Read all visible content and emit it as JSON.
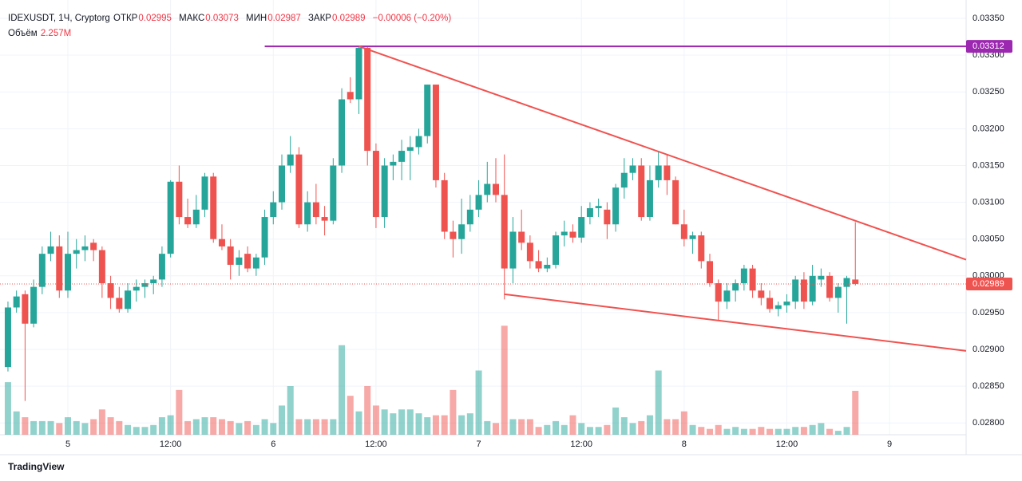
{
  "chart_data": {
    "type": "candlestick",
    "brand": "TradingView",
    "legend": {
      "symbol": "IDEXUSDT, 1Ч, Cryptorg",
      "open_label": "ОТКР",
      "high_label": "МАКС",
      "low_label": "МИН",
      "close_label": "ЗАКР",
      "change": "−0.00006 (−0.20%)",
      "volume_label": "Объём"
    },
    "up_color": "#26a69a",
    "down_color": "#ef5350",
    "ylim": [
      0.02784,
      0.03375
    ],
    "yticks": [
      {
        "value": 0.028,
        "label": "0.02800"
      },
      {
        "value": 0.0285,
        "label": "0.02850"
      },
      {
        "value": 0.029,
        "label": "0.02900"
      },
      {
        "value": 0.0295,
        "label": "0.02950"
      },
      {
        "value": 0.03,
        "label": "0.03000"
      },
      {
        "value": 0.0305,
        "label": "0.03050"
      },
      {
        "value": 0.031,
        "label": "0.03100"
      },
      {
        "value": 0.0315,
        "label": "0.03150"
      },
      {
        "value": 0.032,
        "label": "0.03200"
      },
      {
        "value": 0.0325,
        "label": "0.03250"
      },
      {
        "value": 0.033,
        "label": "0.03300"
      },
      {
        "value": 0.0335,
        "label": "0.03350"
      }
    ],
    "xticks": [
      {
        "value": 7,
        "label": "5"
      },
      {
        "value": 19,
        "label": "12:00"
      },
      {
        "value": 31,
        "label": "6"
      },
      {
        "value": 43,
        "label": "12:00"
      },
      {
        "value": 55,
        "label": "7"
      },
      {
        "value": 67,
        "label": "12:00"
      },
      {
        "value": 79,
        "label": "8"
      },
      {
        "value": 91,
        "label": "12:00"
      },
      {
        "value": 103,
        "label": "9"
      }
    ],
    "grid": true,
    "ohlc": [
      [
        0.02876,
        0.02965,
        0.0287,
        0.02957
      ],
      [
        0.02957,
        0.0298,
        0.0295,
        0.02972
      ],
      [
        0.02975,
        0.0298,
        0.0283,
        0.02935
      ],
      [
        0.02935,
        0.02995,
        0.0293,
        0.02985
      ],
      [
        0.02985,
        0.0304,
        0.02975,
        0.0303
      ],
      [
        0.0303,
        0.0306,
        0.0302,
        0.0304
      ],
      [
        0.0304,
        0.03055,
        0.0297,
        0.0298
      ],
      [
        0.0298,
        0.0306,
        0.0297,
        0.0303
      ],
      [
        0.0303,
        0.0305,
        0.0301,
        0.03035
      ],
      [
        0.03035,
        0.03055,
        0.0302,
        0.0304
      ],
      [
        0.03045,
        0.0305,
        0.0302,
        0.03035
      ],
      [
        0.03035,
        0.0304,
        0.0297,
        0.0299
      ],
      [
        0.0299,
        0.03,
        0.02955,
        0.0297
      ],
      [
        0.0297,
        0.02985,
        0.0295,
        0.02955
      ],
      [
        0.02955,
        0.0299,
        0.0295,
        0.0298
      ],
      [
        0.0298,
        0.02995,
        0.02965,
        0.02985
      ],
      [
        0.02985,
        0.02995,
        0.0297,
        0.0299
      ],
      [
        0.0299,
        0.03,
        0.02975,
        0.02995
      ],
      [
        0.02995,
        0.0304,
        0.02985,
        0.0303
      ],
      [
        0.0303,
        0.0313,
        0.03025,
        0.03128
      ],
      [
        0.03128,
        0.0315,
        0.0307,
        0.0308
      ],
      [
        0.0308,
        0.03105,
        0.03065,
        0.0307
      ],
      [
        0.0307,
        0.0311,
        0.03065,
        0.0309
      ],
      [
        0.0309,
        0.0314,
        0.0308,
        0.03135
      ],
      [
        0.03135,
        0.0314,
        0.03045,
        0.0305
      ],
      [
        0.0305,
        0.0307,
        0.03035,
        0.0304
      ],
      [
        0.0304,
        0.0305,
        0.02995,
        0.03015
      ],
      [
        0.03015,
        0.03035,
        0.03,
        0.03025
      ],
      [
        0.0303,
        0.0304,
        0.03005,
        0.0301
      ],
      [
        0.0301,
        0.0303,
        0.03,
        0.03025
      ],
      [
        0.03025,
        0.0309,
        0.03015,
        0.0308
      ],
      [
        0.0308,
        0.03115,
        0.0307,
        0.031
      ],
      [
        0.031,
        0.03165,
        0.0309,
        0.0315
      ],
      [
        0.0315,
        0.0319,
        0.0314,
        0.03165
      ],
      [
        0.03165,
        0.03175,
        0.03065,
        0.0307
      ],
      [
        0.0307,
        0.03115,
        0.0306,
        0.031
      ],
      [
        0.031,
        0.03125,
        0.0307,
        0.0308
      ],
      [
        0.0308,
        0.03095,
        0.03055,
        0.03075
      ],
      [
        0.03075,
        0.0316,
        0.0307,
        0.0315
      ],
      [
        0.0315,
        0.03255,
        0.0314,
        0.0324
      ],
      [
        0.0325,
        0.0327,
        0.03235,
        0.0324
      ],
      [
        0.0324,
        0.03312,
        0.0322,
        0.0331
      ],
      [
        0.0331,
        0.03312,
        0.0315,
        0.0317
      ],
      [
        0.0317,
        0.0318,
        0.03065,
        0.0308
      ],
      [
        0.0308,
        0.0316,
        0.03065,
        0.0315
      ],
      [
        0.0315,
        0.03165,
        0.0313,
        0.03155
      ],
      [
        0.03155,
        0.03185,
        0.0313,
        0.0317
      ],
      [
        0.0317,
        0.0319,
        0.0313,
        0.03175
      ],
      [
        0.03175,
        0.032,
        0.03165,
        0.0319
      ],
      [
        0.0319,
        0.0326,
        0.0318,
        0.0326
      ],
      [
        0.0326,
        0.0326,
        0.0312,
        0.0313
      ],
      [
        0.0313,
        0.0314,
        0.0305,
        0.0306
      ],
      [
        0.0306,
        0.03075,
        0.03025,
        0.0305
      ],
      [
        0.0305,
        0.03105,
        0.0303,
        0.0307
      ],
      [
        0.0307,
        0.0311,
        0.0306,
        0.0309
      ],
      [
        0.0309,
        0.0313,
        0.0308,
        0.0311
      ],
      [
        0.0311,
        0.03155,
        0.031,
        0.03125
      ],
      [
        0.03125,
        0.0316,
        0.031,
        0.0311
      ],
      [
        0.0311,
        0.03165,
        0.02968,
        0.0301
      ],
      [
        0.0301,
        0.0308,
        0.0299,
        0.0306
      ],
      [
        0.0306,
        0.0309,
        0.03035,
        0.03045
      ],
      [
        0.03045,
        0.03055,
        0.0301,
        0.0302
      ],
      [
        0.0302,
        0.03035,
        0.03005,
        0.0301
      ],
      [
        0.0301,
        0.03025,
        0.03005,
        0.03015
      ],
      [
        0.03015,
        0.0306,
        0.0301,
        0.03055
      ],
      [
        0.03055,
        0.03075,
        0.0304,
        0.0306
      ],
      [
        0.0306,
        0.0307,
        0.03045,
        0.03052
      ],
      [
        0.03052,
        0.03095,
        0.03045,
        0.0308
      ],
      [
        0.0308,
        0.031,
        0.0307,
        0.03092
      ],
      [
        0.03092,
        0.03105,
        0.0308,
        0.03095
      ],
      [
        0.0309,
        0.031,
        0.0305,
        0.0307
      ],
      [
        0.0307,
        0.03125,
        0.0306,
        0.0312
      ],
      [
        0.0312,
        0.0316,
        0.03105,
        0.0314
      ],
      [
        0.0314,
        0.0316,
        0.0313,
        0.0315
      ],
      [
        0.0315,
        0.0316,
        0.03075,
        0.0308
      ],
      [
        0.0308,
        0.0315,
        0.03075,
        0.0313
      ],
      [
        0.0313,
        0.0317,
        0.0312,
        0.0315
      ],
      [
        0.0315,
        0.03165,
        0.0311,
        0.0313
      ],
      [
        0.0313,
        0.03135,
        0.0307,
        0.0307
      ],
      [
        0.0307,
        0.0309,
        0.0304,
        0.0305
      ],
      [
        0.0305,
        0.0306,
        0.0303,
        0.03055
      ],
      [
        0.03055,
        0.0306,
        0.0301,
        0.0302
      ],
      [
        0.0302,
        0.0303,
        0.02985,
        0.0299
      ],
      [
        0.0299,
        0.02995,
        0.0294,
        0.02965
      ],
      [
        0.02965,
        0.0299,
        0.02955,
        0.0298
      ],
      [
        0.0298,
        0.02995,
        0.02965,
        0.0299
      ],
      [
        0.0299,
        0.03015,
        0.0298,
        0.0301
      ],
      [
        0.0301,
        0.03015,
        0.0297,
        0.0298
      ],
      [
        0.0298,
        0.0299,
        0.0296,
        0.0297
      ],
      [
        0.0297,
        0.0298,
        0.0295,
        0.02955
      ],
      [
        0.02955,
        0.02965,
        0.02945,
        0.0296
      ],
      [
        0.0296,
        0.02975,
        0.0295,
        0.02965
      ],
      [
        0.02965,
        0.03,
        0.02955,
        0.02995
      ],
      [
        0.02995,
        0.03005,
        0.02955,
        0.02965
      ],
      [
        0.02965,
        0.03015,
        0.0296,
        0.03
      ],
      [
        0.02995,
        0.0301,
        0.02985,
        0.03
      ],
      [
        0.03,
        0.03005,
        0.02965,
        0.0297
      ],
      [
        0.0297,
        0.0299,
        0.0295,
        0.02985
      ],
      [
        0.02985,
        0.03,
        0.02935,
        0.02997
      ],
      [
        0.02995,
        0.03073,
        0.02987,
        0.02989
      ]
    ],
    "volume": [
      2.7,
      1.2,
      0.9,
      0.7,
      0.7,
      0.7,
      0.6,
      0.9,
      0.7,
      0.6,
      0.8,
      1.3,
      0.9,
      0.7,
      0.5,
      0.4,
      0.4,
      0.5,
      0.9,
      1.0,
      2.3,
      0.7,
      0.8,
      0.9,
      0.9,
      0.8,
      0.7,
      0.6,
      0.7,
      0.5,
      0.8,
      0.6,
      1.5,
      2.5,
      0.8,
      0.8,
      0.8,
      0.8,
      0.8,
      4.6,
      2.0,
      1.2,
      2.5,
      1.5,
      1.3,
      1.1,
      1.3,
      1.3,
      1.1,
      0.9,
      1.0,
      1.0,
      2.3,
      1.0,
      1.1,
      3.3,
      0.7,
      0.6,
      5.6,
      0.8,
      0.8,
      0.8,
      0.4,
      0.5,
      0.7,
      0.5,
      1.0,
      0.6,
      0.4,
      0.4,
      0.5,
      1.4,
      0.9,
      0.6,
      0.7,
      1.0,
      3.3,
      0.8,
      0.8,
      1.2,
      0.5,
      0.4,
      0.3,
      0.5,
      0.3,
      0.4,
      0.3,
      0.3,
      0.4,
      0.3,
      0.3,
      0.3,
      0.4,
      0.4,
      0.5,
      0.6,
      0.3,
      0.2,
      0.4,
      2.257
    ],
    "volume_labels": [
      null,
      null,
      null,
      null,
      null,
      null,
      null,
      null,
      null,
      null,
      null,
      null,
      null,
      null,
      null,
      null,
      null,
      null,
      null,
      null,
      null,
      null,
      null,
      null,
      null,
      null,
      null,
      null,
      null,
      null,
      null,
      null,
      null,
      null,
      null,
      null,
      null,
      null,
      null,
      null,
      null,
      null,
      null,
      null,
      null,
      null,
      null,
      null,
      null,
      null,
      null,
      null,
      null,
      null,
      null,
      null,
      null,
      null,
      null,
      null,
      null,
      null,
      null,
      null,
      null,
      null,
      null,
      null,
      null,
      null,
      null,
      null,
      null,
      null,
      null,
      null,
      null,
      null,
      null,
      null,
      null,
      null,
      null,
      null,
      null,
      null,
      null,
      null,
      null,
      null,
      null,
      null,
      null,
      null,
      null,
      null,
      null,
      null,
      null,
      "2.257M"
    ],
    "drawings": [
      {
        "color": "#9c27b0",
        "points": [
          [
            30,
            0.03312
          ],
          [
            112,
            0.03312
          ]
        ],
        "axis_label": true
      },
      {
        "color": "#f0524f",
        "points": [
          [
            41,
            0.03312
          ],
          [
            112,
            0.03022
          ]
        ]
      },
      {
        "color": "#f0524f",
        "points": [
          [
            58,
            0.02975
          ],
          [
            112,
            0.02898
          ]
        ]
      }
    ]
  }
}
